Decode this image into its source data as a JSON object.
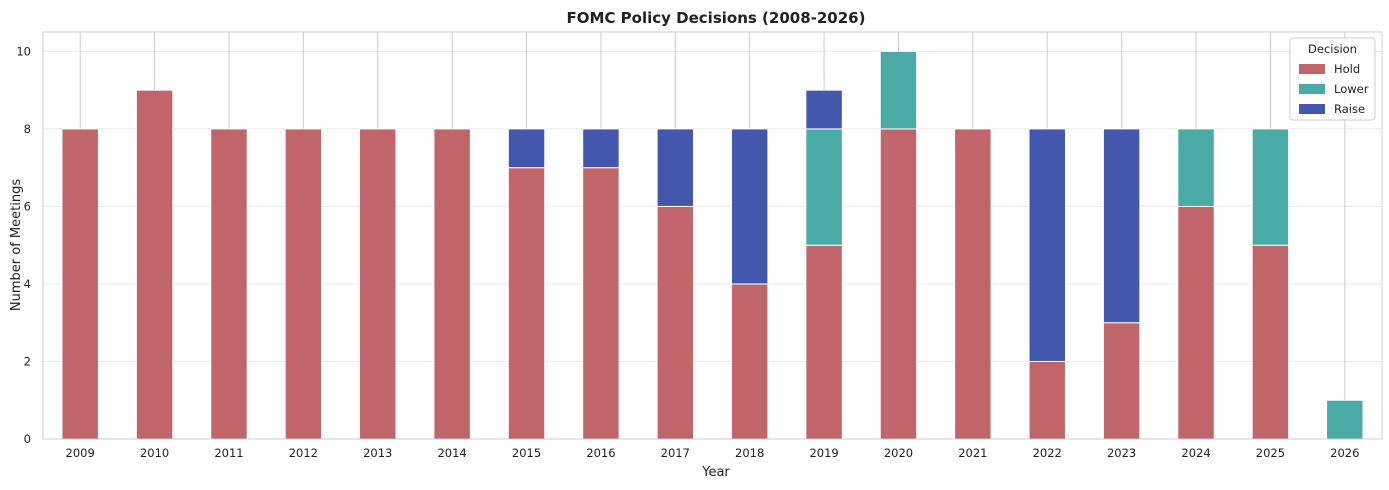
{
  "chart_data": {
    "type": "bar",
    "stacked": true,
    "title": "FOMC Policy Decisions (2008-2026)",
    "xlabel": "Year",
    "ylabel": "Number of Meetings",
    "ylim": [
      0,
      10.5
    ],
    "yticks": [
      0,
      2,
      4,
      6,
      8,
      10
    ],
    "grid": true,
    "legend_title": "Decision",
    "legend_position": "top-right",
    "categories": [
      "2009",
      "2010",
      "2011",
      "2012",
      "2013",
      "2014",
      "2015",
      "2016",
      "2017",
      "2018",
      "2019",
      "2020",
      "2021",
      "2022",
      "2023",
      "2024",
      "2025",
      "2026"
    ],
    "series": [
      {
        "name": "Hold",
        "color": "#c0666a",
        "values": [
          8,
          9,
          8,
          8,
          8,
          8,
          7,
          7,
          6,
          4,
          5,
          8,
          8,
          2,
          3,
          6,
          5,
          0
        ]
      },
      {
        "name": "Lower",
        "color": "#4aaaa5",
        "values": [
          0,
          0,
          0,
          0,
          0,
          0,
          0,
          0,
          0,
          0,
          3,
          2,
          0,
          0,
          0,
          2,
          3,
          1
        ]
      },
      {
        "name": "Raise",
        "color": "#4357ad",
        "values": [
          0,
          0,
          0,
          0,
          0,
          0,
          1,
          1,
          2,
          4,
          1,
          0,
          0,
          6,
          5,
          0,
          0,
          0
        ]
      }
    ]
  }
}
